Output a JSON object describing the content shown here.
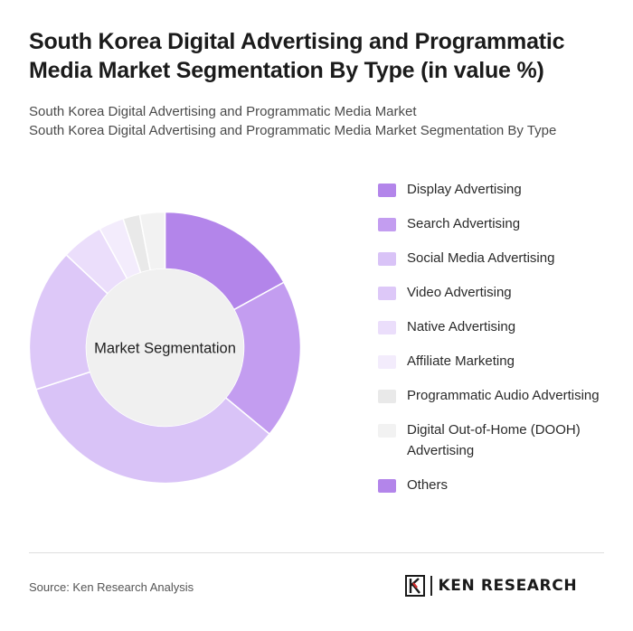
{
  "title": "South Korea Digital Advertising and Programmatic Media Market Segmentation By Type (in value %)",
  "subtitle_line1": "South Korea Digital Advertising and Programmatic Media Market",
  "subtitle_line2": "South Korea Digital Advertising and Programmatic Media Market Segmentation By Type",
  "chart_data": {
    "type": "pie",
    "center_label": "Market Segmentation",
    "series": [
      {
        "name": "Display Advertising",
        "value": 17,
        "color": "#b385ea"
      },
      {
        "name": "Search Advertising",
        "value": 19,
        "color": "#c39df0"
      },
      {
        "name": "Social Media Advertising",
        "value": 34,
        "color": "#d9c3f7"
      },
      {
        "name": "Video Advertising",
        "value": 17,
        "color": "#ddc8f8"
      },
      {
        "name": "Native Advertising",
        "value": 5,
        "color": "#ebdefb"
      },
      {
        "name": "Affiliate Marketing",
        "value": 3,
        "color": "#f3ecfc"
      },
      {
        "name": "Programmatic Audio Advertising",
        "value": 2,
        "color": "#e9e9e9"
      },
      {
        "name": "Digital Out-of-Home (DOOH) Advertising",
        "value": 3,
        "color": "#f2f2f2"
      },
      {
        "name": "Others",
        "value": 0,
        "color": "#b385ea"
      }
    ]
  },
  "source": "Source: Ken Research Analysis",
  "logo_text": "KEN RESEARCH"
}
